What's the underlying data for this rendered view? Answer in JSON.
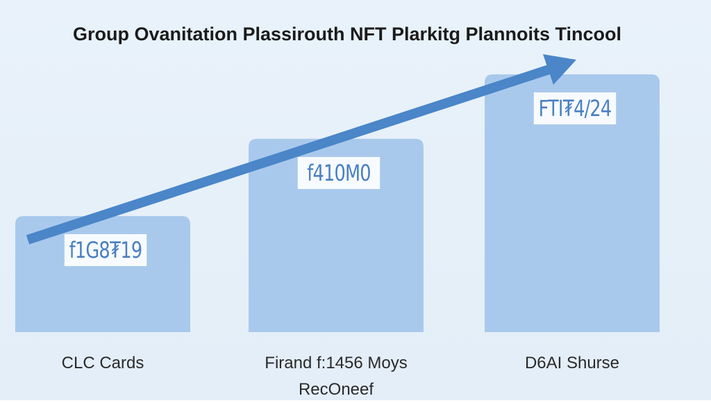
{
  "chart_data": {
    "type": "bar",
    "title": "Group Ovanitation Plassirouth NFT Plarkitg Plannoits Tincool",
    "categories": [
      "CLC Cards",
      "Firand f:1456 Moys RecOneef",
      "D6AI Shurse"
    ],
    "values": [
      45,
      75,
      100
    ],
    "bar_texts": [
      "f1G8₮19",
      "f410M0",
      "FTI₮4/24"
    ],
    "color": "#a9c9ec",
    "ylim": [
      0,
      100
    ]
  }
}
